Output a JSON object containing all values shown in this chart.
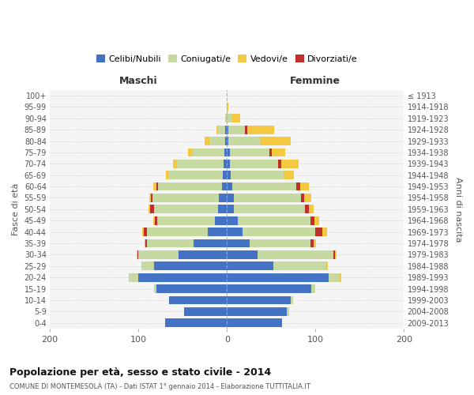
{
  "age_groups": [
    "0-4",
    "5-9",
    "10-14",
    "15-19",
    "20-24",
    "25-29",
    "30-34",
    "35-39",
    "40-44",
    "45-49",
    "50-54",
    "55-59",
    "60-64",
    "65-69",
    "70-74",
    "75-79",
    "80-84",
    "85-89",
    "90-94",
    "95-99",
    "100+"
  ],
  "birth_years": [
    "2009-2013",
    "2004-2008",
    "1999-2003",
    "1994-1998",
    "1989-1993",
    "1984-1988",
    "1979-1983",
    "1974-1978",
    "1969-1973",
    "1964-1968",
    "1959-1963",
    "1954-1958",
    "1949-1953",
    "1944-1948",
    "1939-1943",
    "1934-1938",
    "1929-1933",
    "1924-1928",
    "1919-1923",
    "1914-1918",
    "≤ 1913"
  ],
  "male": {
    "celibi": [
      70,
      48,
      65,
      80,
      100,
      82,
      55,
      38,
      22,
      14,
      10,
      9,
      6,
      5,
      4,
      3,
      2,
      2,
      0,
      0,
      0
    ],
    "coniugati": [
      0,
      0,
      0,
      2,
      10,
      15,
      45,
      52,
      68,
      65,
      72,
      75,
      72,
      60,
      52,
      36,
      18,
      8,
      2,
      0,
      0
    ],
    "vedovi": [
      0,
      0,
      0,
      0,
      1,
      0,
      1,
      1,
      2,
      2,
      2,
      2,
      3,
      4,
      5,
      5,
      5,
      2,
      0,
      0,
      0
    ],
    "divorziati": [
      0,
      0,
      0,
      0,
      0,
      0,
      1,
      2,
      4,
      2,
      5,
      2,
      2,
      0,
      0,
      0,
      0,
      0,
      0,
      0,
      0
    ]
  },
  "female": {
    "nubili": [
      62,
      68,
      72,
      95,
      115,
      52,
      35,
      26,
      18,
      12,
      8,
      8,
      6,
      4,
      3,
      3,
      2,
      2,
      0,
      0,
      0
    ],
    "coniugate": [
      0,
      2,
      3,
      5,
      12,
      60,
      85,
      68,
      82,
      82,
      80,
      76,
      72,
      60,
      55,
      45,
      35,
      18,
      5,
      1,
      0
    ],
    "vedove": [
      0,
      0,
      0,
      0,
      2,
      2,
      2,
      3,
      5,
      5,
      5,
      8,
      10,
      12,
      20,
      15,
      35,
      30,
      10,
      1,
      0
    ],
    "divorziate": [
      0,
      0,
      0,
      0,
      0,
      0,
      2,
      4,
      8,
      5,
      5,
      3,
      5,
      0,
      3,
      3,
      0,
      3,
      0,
      0,
      0
    ]
  },
  "colors": {
    "celibi_nubili": "#4472c4",
    "coniugati": "#c5d9a0",
    "vedovi": "#f5c842",
    "divorziati": "#c0302a"
  },
  "xlim": 200,
  "title": "Popolazione per età, sesso e stato civile - 2014",
  "subtitle": "COMUNE DI MONTEMESOLA (TA) - Dati ISTAT 1° gennaio 2014 - Elaborazione TUTTITALIA.IT",
  "ylabel": "Fasce di età",
  "ylabel_right": "Anni di nascita",
  "xlabel_left": "Maschi",
  "xlabel_right": "Femmine",
  "bg_color": "#f5f5f5",
  "grid_color": "#cccccc"
}
